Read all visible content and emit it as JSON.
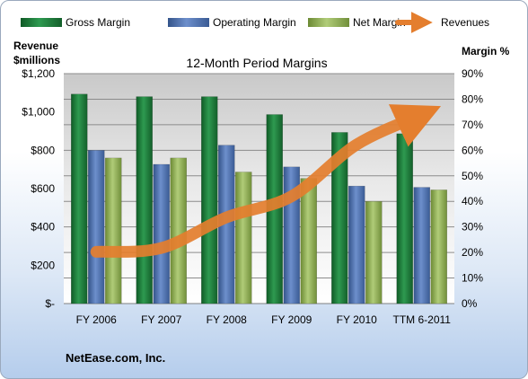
{
  "chart_data": {
    "type": "bar",
    "title": "12-Month Period Margins",
    "company": "NetEase.com, Inc.",
    "y_left_label_line1": "Revenue",
    "y_left_label_line2": "$millions",
    "y_right_label": "Margin %",
    "categories": [
      "FY 2006",
      "FY 2007",
      "FY 2008",
      "FY 2009",
      "FY 2010",
      "TTM 6-2011"
    ],
    "left_ticks": [
      "$-",
      "$200",
      "$400",
      "$600",
      "$800",
      "$1,000",
      "$1,200"
    ],
    "right_ticks": [
      "0%",
      "10%",
      "20%",
      "30%",
      "40%",
      "50%",
      "60%",
      "70%",
      "80%",
      "90%"
    ],
    "left_ylim": [
      0,
      1200
    ],
    "right_ylim": [
      0,
      90
    ],
    "legend_position": "top",
    "grid": true,
    "series": [
      {
        "name": "Gross Margin",
        "type": "bar",
        "axis": "right",
        "color": "#1f7a3c",
        "values": [
          82,
          81,
          81,
          74,
          67,
          66.5
        ]
      },
      {
        "name": "Operating Margin",
        "type": "bar",
        "axis": "right",
        "color": "#4a6fae",
        "values": [
          60,
          54.5,
          62,
          53.5,
          46,
          45.5
        ]
      },
      {
        "name": "Net Margin",
        "type": "bar",
        "axis": "right",
        "color": "#8fae52",
        "values": [
          57,
          57,
          51.5,
          49,
          40,
          44.5
        ]
      },
      {
        "name": "Revenues",
        "type": "line",
        "axis": "left",
        "color": "#e47e2e",
        "values": [
          270,
          290,
          450,
          560,
          830,
          985
        ]
      }
    ]
  }
}
